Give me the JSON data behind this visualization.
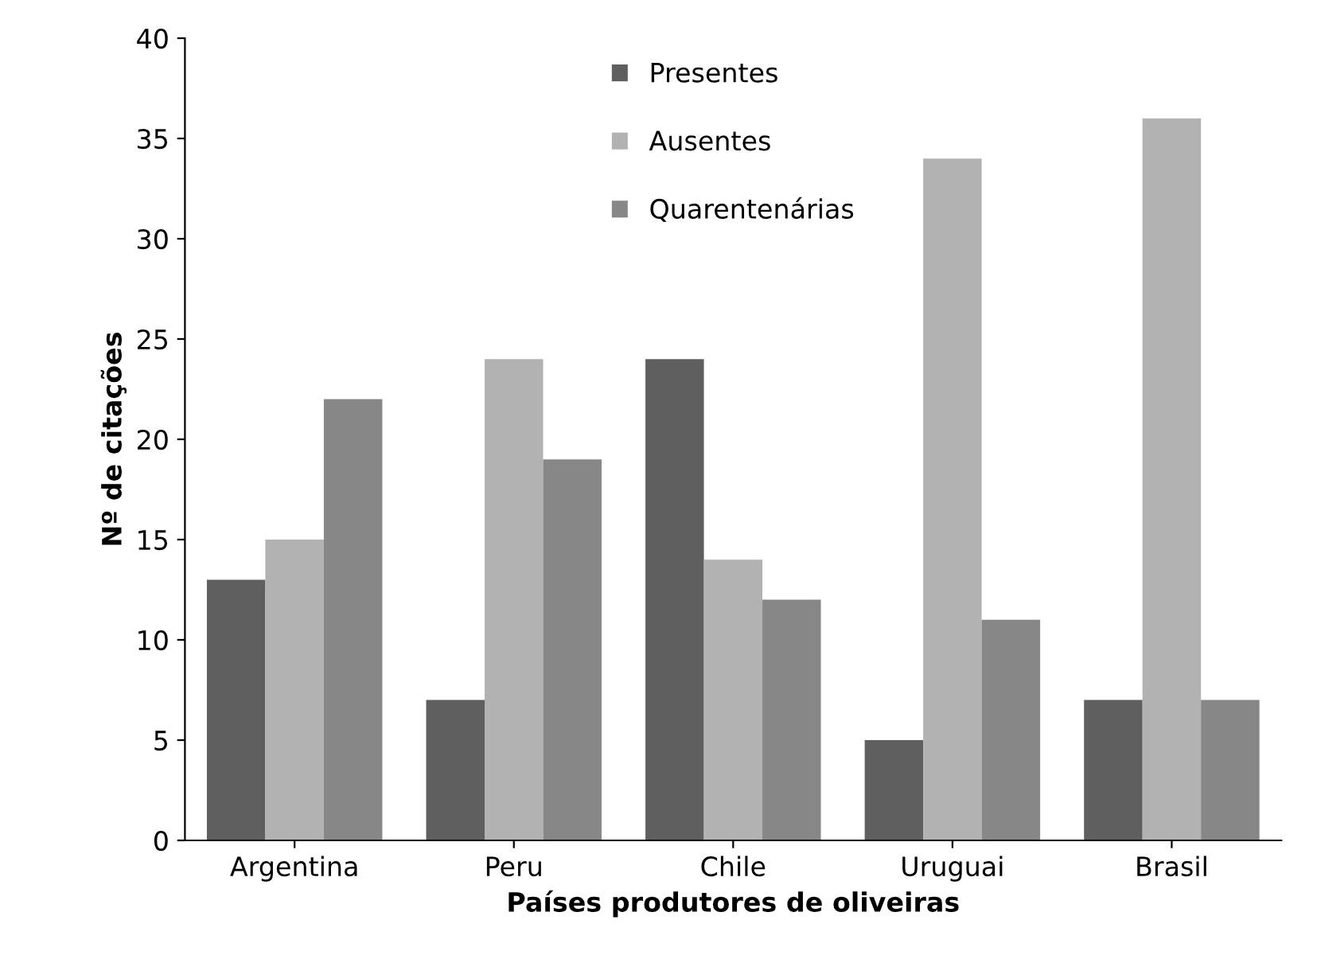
{
  "chart_data": {
    "type": "bar",
    "xlabel": "Países produtores de oliveiras",
    "ylabel": "Nº de citações",
    "categories": [
      "Argentina",
      "Peru",
      "Chile",
      "Uruguai",
      "Brasil"
    ],
    "series": [
      {
        "name": "Presentes",
        "color": "#5f5f5f",
        "values": [
          13,
          7,
          24,
          5,
          7
        ]
      },
      {
        "name": "Ausentes",
        "color": "#b2b2b2",
        "values": [
          15,
          24,
          14,
          34,
          36
        ]
      },
      {
        "name": "Quarentenárias",
        "color": "#878787",
        "values": [
          22,
          19,
          12,
          11,
          7
        ]
      }
    ],
    "ylim": [
      0,
      40
    ],
    "yticks": [
      0,
      5,
      10,
      15,
      20,
      25,
      30,
      35,
      40
    ],
    "grid": false,
    "legend": "top"
  }
}
